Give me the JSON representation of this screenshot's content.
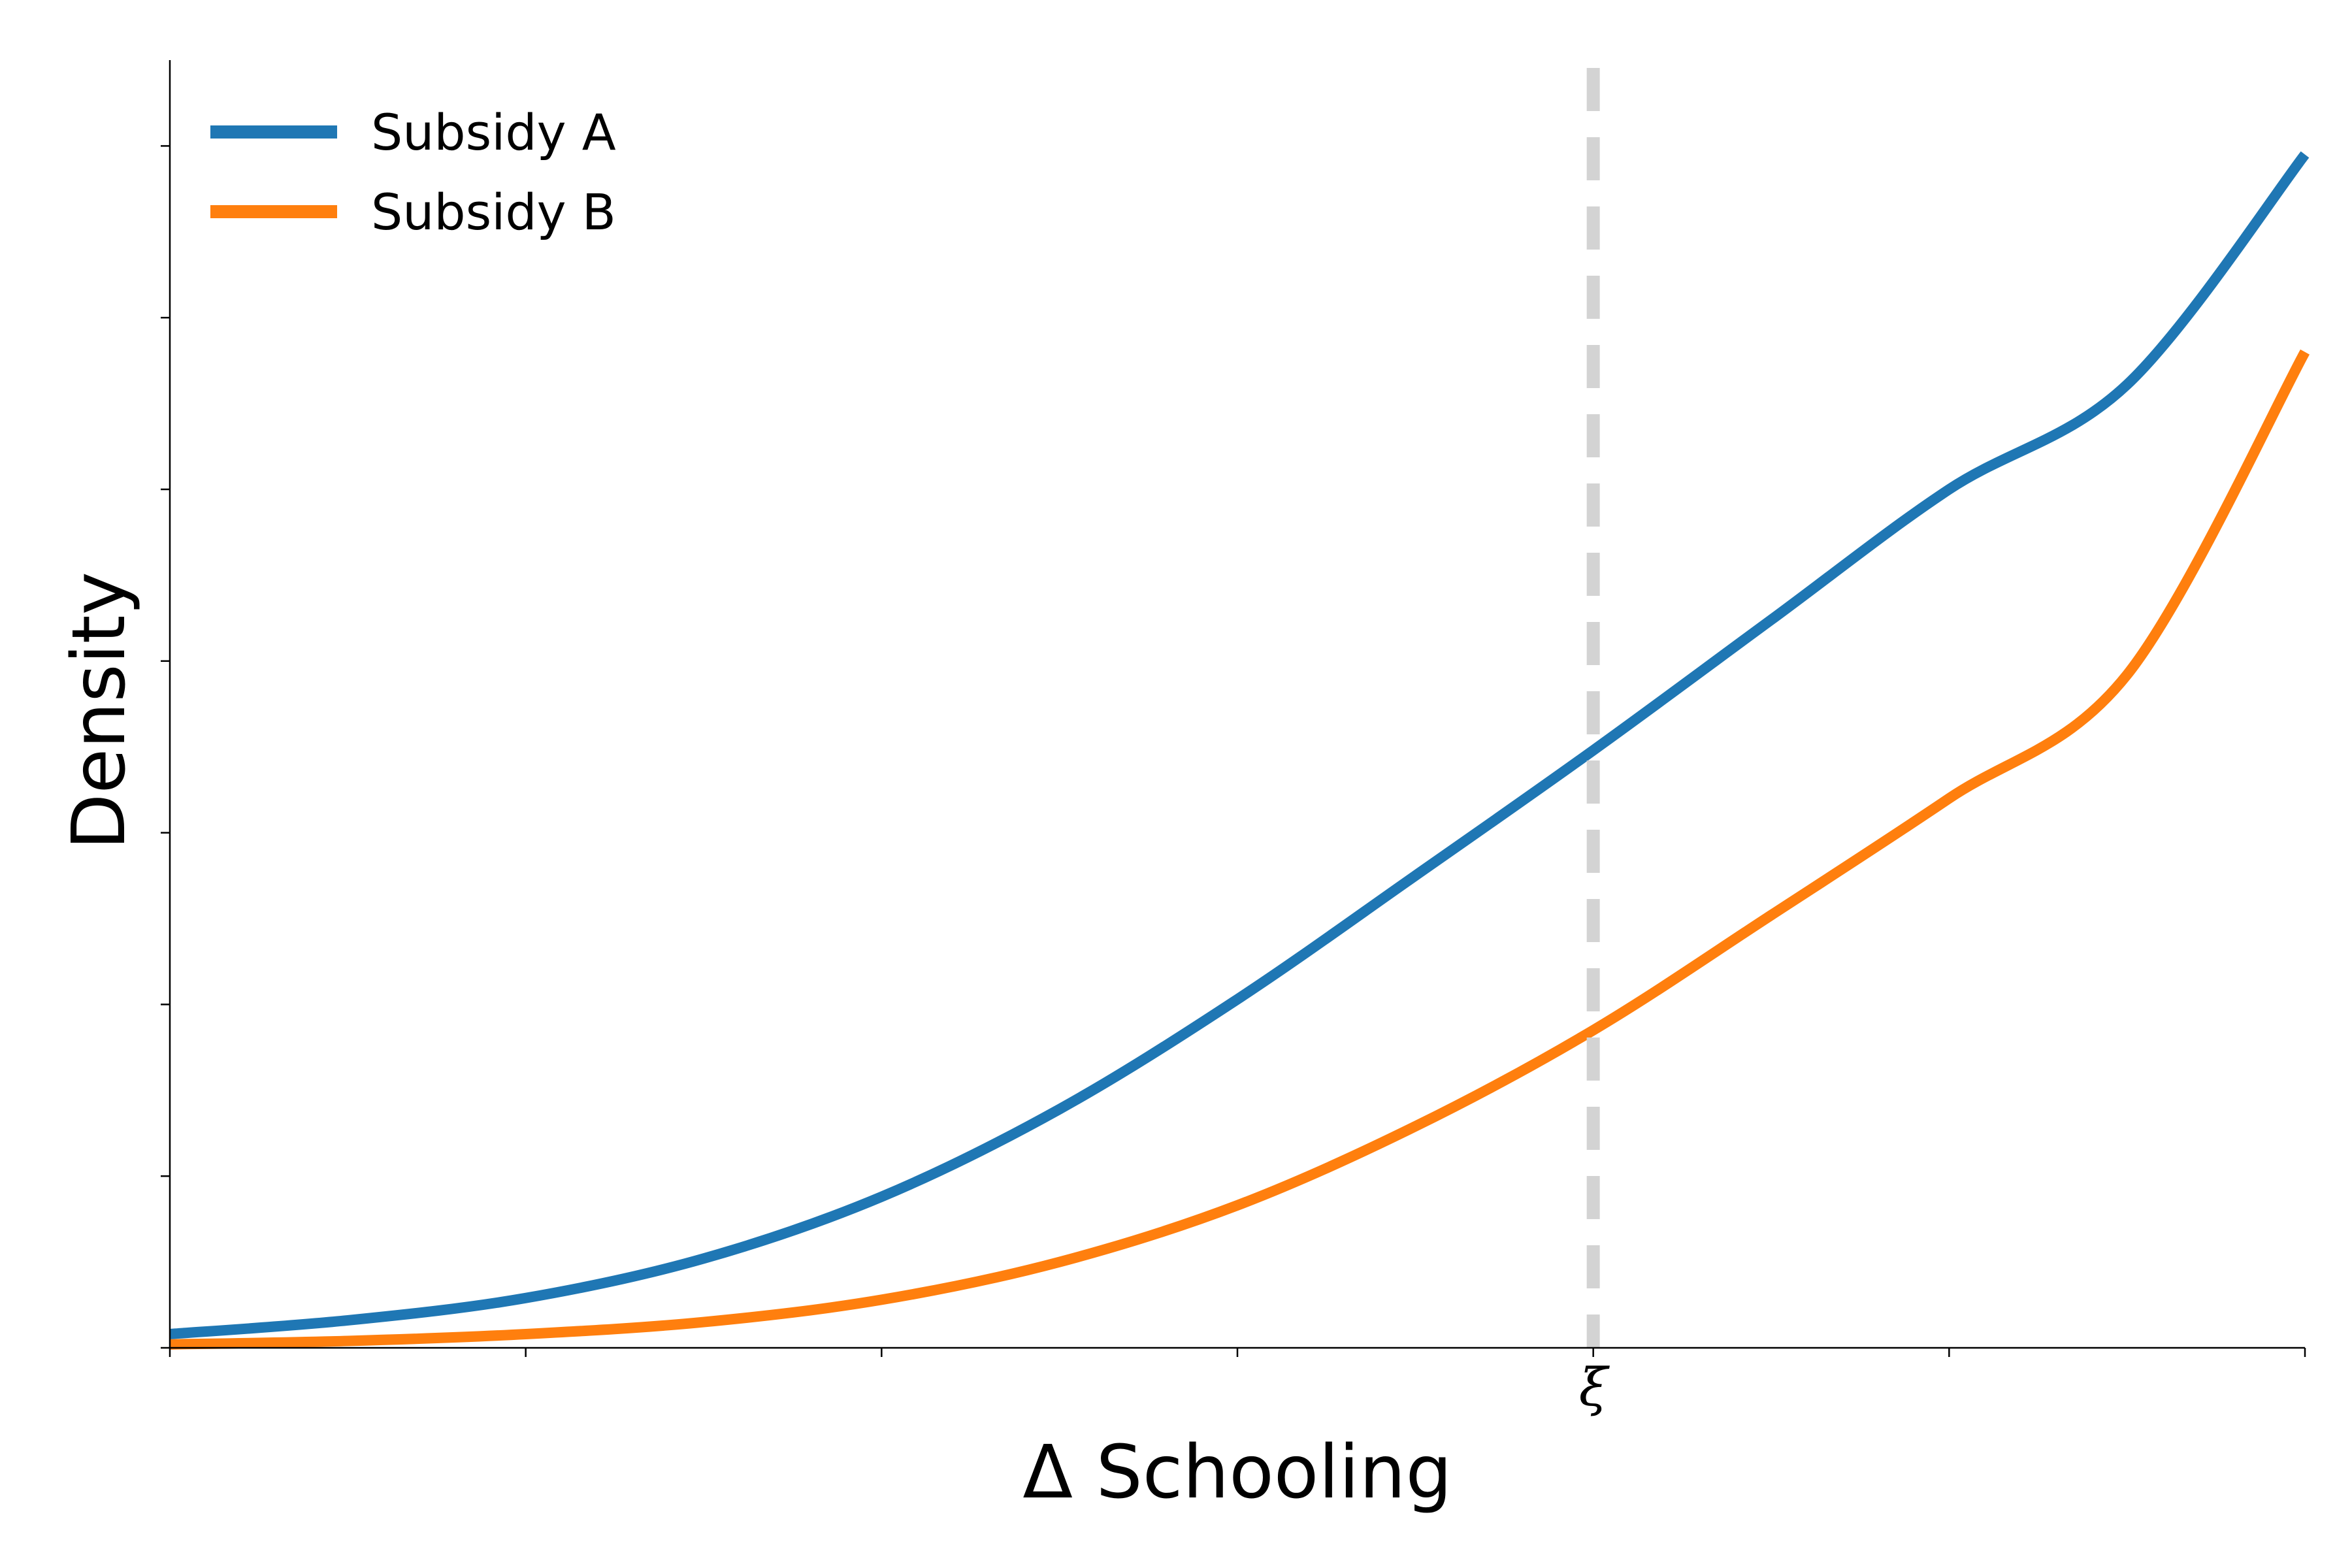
{
  "chart_data": {
    "type": "line",
    "title": "",
    "xlabel": "Δ Schooling",
    "ylabel": "Density",
    "xlim": [
      0,
      6
    ],
    "ylim": [
      0,
      0.75
    ],
    "x_ticks": [
      0,
      1,
      2,
      3,
      4,
      5,
      6
    ],
    "x_tick_labels": [
      "",
      "",
      "",
      "",
      "ξ",
      "",
      ""
    ],
    "y_ticks": [
      0,
      0.1,
      0.2,
      0.3,
      0.4,
      0.5,
      0.6,
      0.7
    ],
    "grid": false,
    "legend_position": "top-left",
    "series": [
      {
        "name": "Subsidy A",
        "color": "#1f77b4",
        "x": [
          0,
          0.5,
          1,
          1.5,
          2,
          2.5,
          3,
          3.5,
          4,
          4.5,
          5,
          5.5,
          6
        ],
        "y": [
          0.008,
          0.016,
          0.029,
          0.052,
          0.088,
          0.139,
          0.203,
          0.275,
          0.348,
          0.424,
          0.5,
          0.561,
          0.695
        ]
      },
      {
        "name": "Subsidy B",
        "color": "#ff7f0e",
        "x": [
          0,
          0.5,
          1,
          1.5,
          2,
          2.5,
          3,
          3.5,
          4,
          4.5,
          5,
          5.5,
          6
        ],
        "y": [
          0.002,
          0.004,
          0.008,
          0.015,
          0.028,
          0.05,
          0.083,
          0.129,
          0.185,
          0.252,
          0.32,
          0.392,
          0.58
        ]
      }
    ],
    "reference_line": {
      "x": 4,
      "label": "ξ",
      "color": "#d3d3d3",
      "style": "dashed"
    }
  }
}
